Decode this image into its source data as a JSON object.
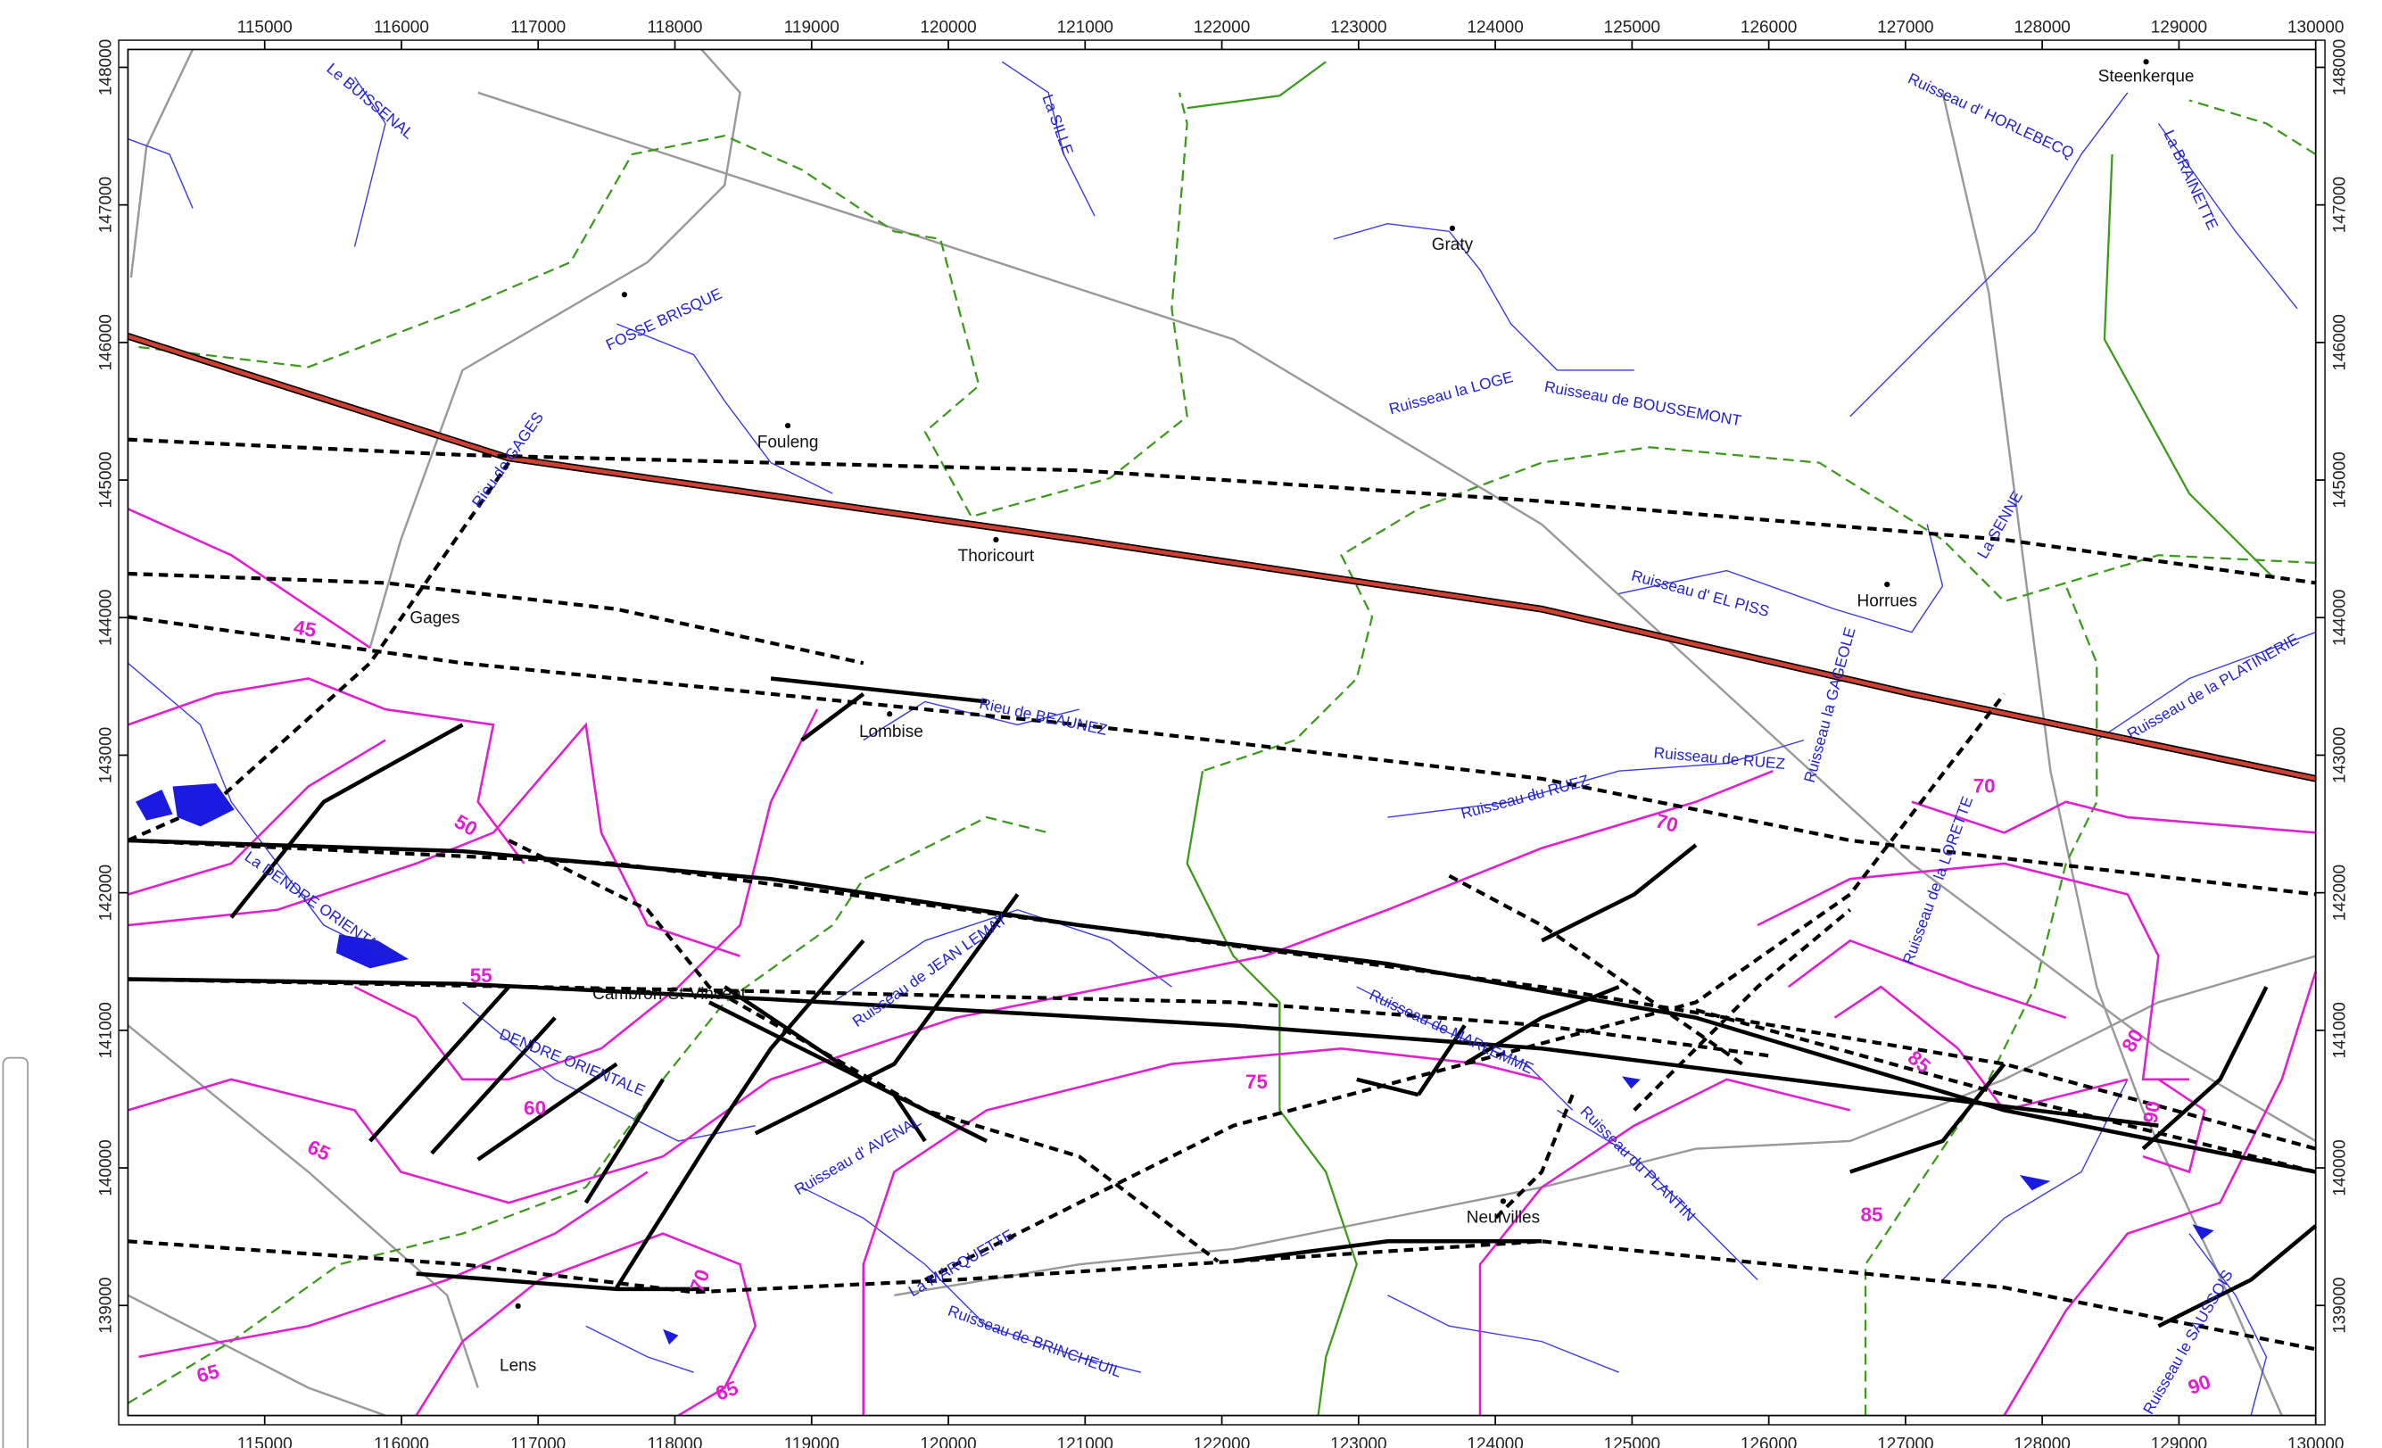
{
  "map": {
    "xlim": [
      114000,
      130000
    ],
    "ylim": [
      138200,
      148130
    ],
    "xticks": [
      115000,
      116000,
      117000,
      118000,
      119000,
      120000,
      121000,
      122000,
      123000,
      124000,
      125000,
      126000,
      127000,
      128000,
      129000,
      130000
    ],
    "yticks": [
      139000,
      140000,
      141000,
      142000,
      143000,
      144000,
      145000,
      146000,
      147000,
      148000
    ],
    "places": [
      "Steenkerque",
      "Graty",
      "Fouleng",
      "Thoricourt",
      "Gages",
      "Lombise",
      "Horrues",
      "Cambron-St-Vincent",
      "Neufvilles",
      "Lens"
    ],
    "rivers": [
      "Le BUISSENAL",
      "La SILLE",
      "Ruisseau d' HORLEBECQ",
      "La BRAINETTE",
      "FOSSE BRISQUE",
      "Rieu de GAGES",
      "Ruisseau la LOGE",
      "Ruisseau de BOUSSEMONT",
      "Ruisseau d' EL PISS",
      "La SENNE",
      "Ruisseau de la PLATINERIE",
      "Rieu de BEAUNEZ",
      "Ruisseau la GAGEOLE",
      "Ruisseau de RUEZ",
      "Ruisseau du RUEZ",
      "Ruisseau de la LORETTE",
      "La DENDRE ORIENTALE",
      "DENDRE ORIENTALE",
      "Ruisseau de JEAN LEMAY",
      "Ruisseau de MARLEMME",
      "Ruisseau d' AVENAL",
      "Ruisseau du PLANTIN",
      "La MARQUETTE",
      "Ruisseau de BRINCHEUIL",
      "Ruisseau le SAUSSOIS"
    ],
    "contour_labels": [
      45,
      50,
      55,
      60,
      65,
      65,
      65,
      70,
      70,
      70,
      75,
      80,
      85,
      85,
      90,
      90
    ]
  }
}
